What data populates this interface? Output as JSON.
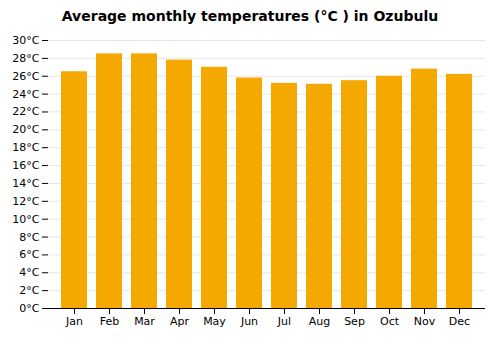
{
  "chart_data": {
    "type": "bar",
    "title": "Average monthly temperatures (°C ) in Ozubulu",
    "categories": [
      "Jan",
      "Feb",
      "Mar",
      "Apr",
      "May",
      "Jun",
      "Jul",
      "Aug",
      "Sep",
      "Oct",
      "Nov",
      "Dec"
    ],
    "values": [
      26.5,
      28.5,
      28.5,
      27.8,
      27.0,
      25.8,
      25.2,
      25.1,
      25.5,
      26.0,
      26.8,
      26.2
    ],
    "color": "#F5A800",
    "ylim": [
      0,
      30
    ],
    "yticks": [
      {
        "value": 0,
        "label": "0°C"
      },
      {
        "value": 2,
        "label": "2°C"
      },
      {
        "value": 4,
        "label": "4°C"
      },
      {
        "value": 6,
        "label": "6°C"
      },
      {
        "value": 8,
        "label": "8°C"
      },
      {
        "value": 10,
        "label": "10°C"
      },
      {
        "value": 12,
        "label": "12°C"
      },
      {
        "value": 14,
        "label": "14°C"
      },
      {
        "value": 16,
        "label": "16°C"
      },
      {
        "value": 18,
        "label": "18°C"
      },
      {
        "value": 20,
        "label": "20°C"
      },
      {
        "value": 22,
        "label": "22°C"
      },
      {
        "value": 24,
        "label": "24°C"
      },
      {
        "value": 26,
        "label": "26°C"
      },
      {
        "value": 28,
        "label": "28°C"
      },
      {
        "value": 30,
        "label": "30°C"
      }
    ],
    "grid": true
  }
}
